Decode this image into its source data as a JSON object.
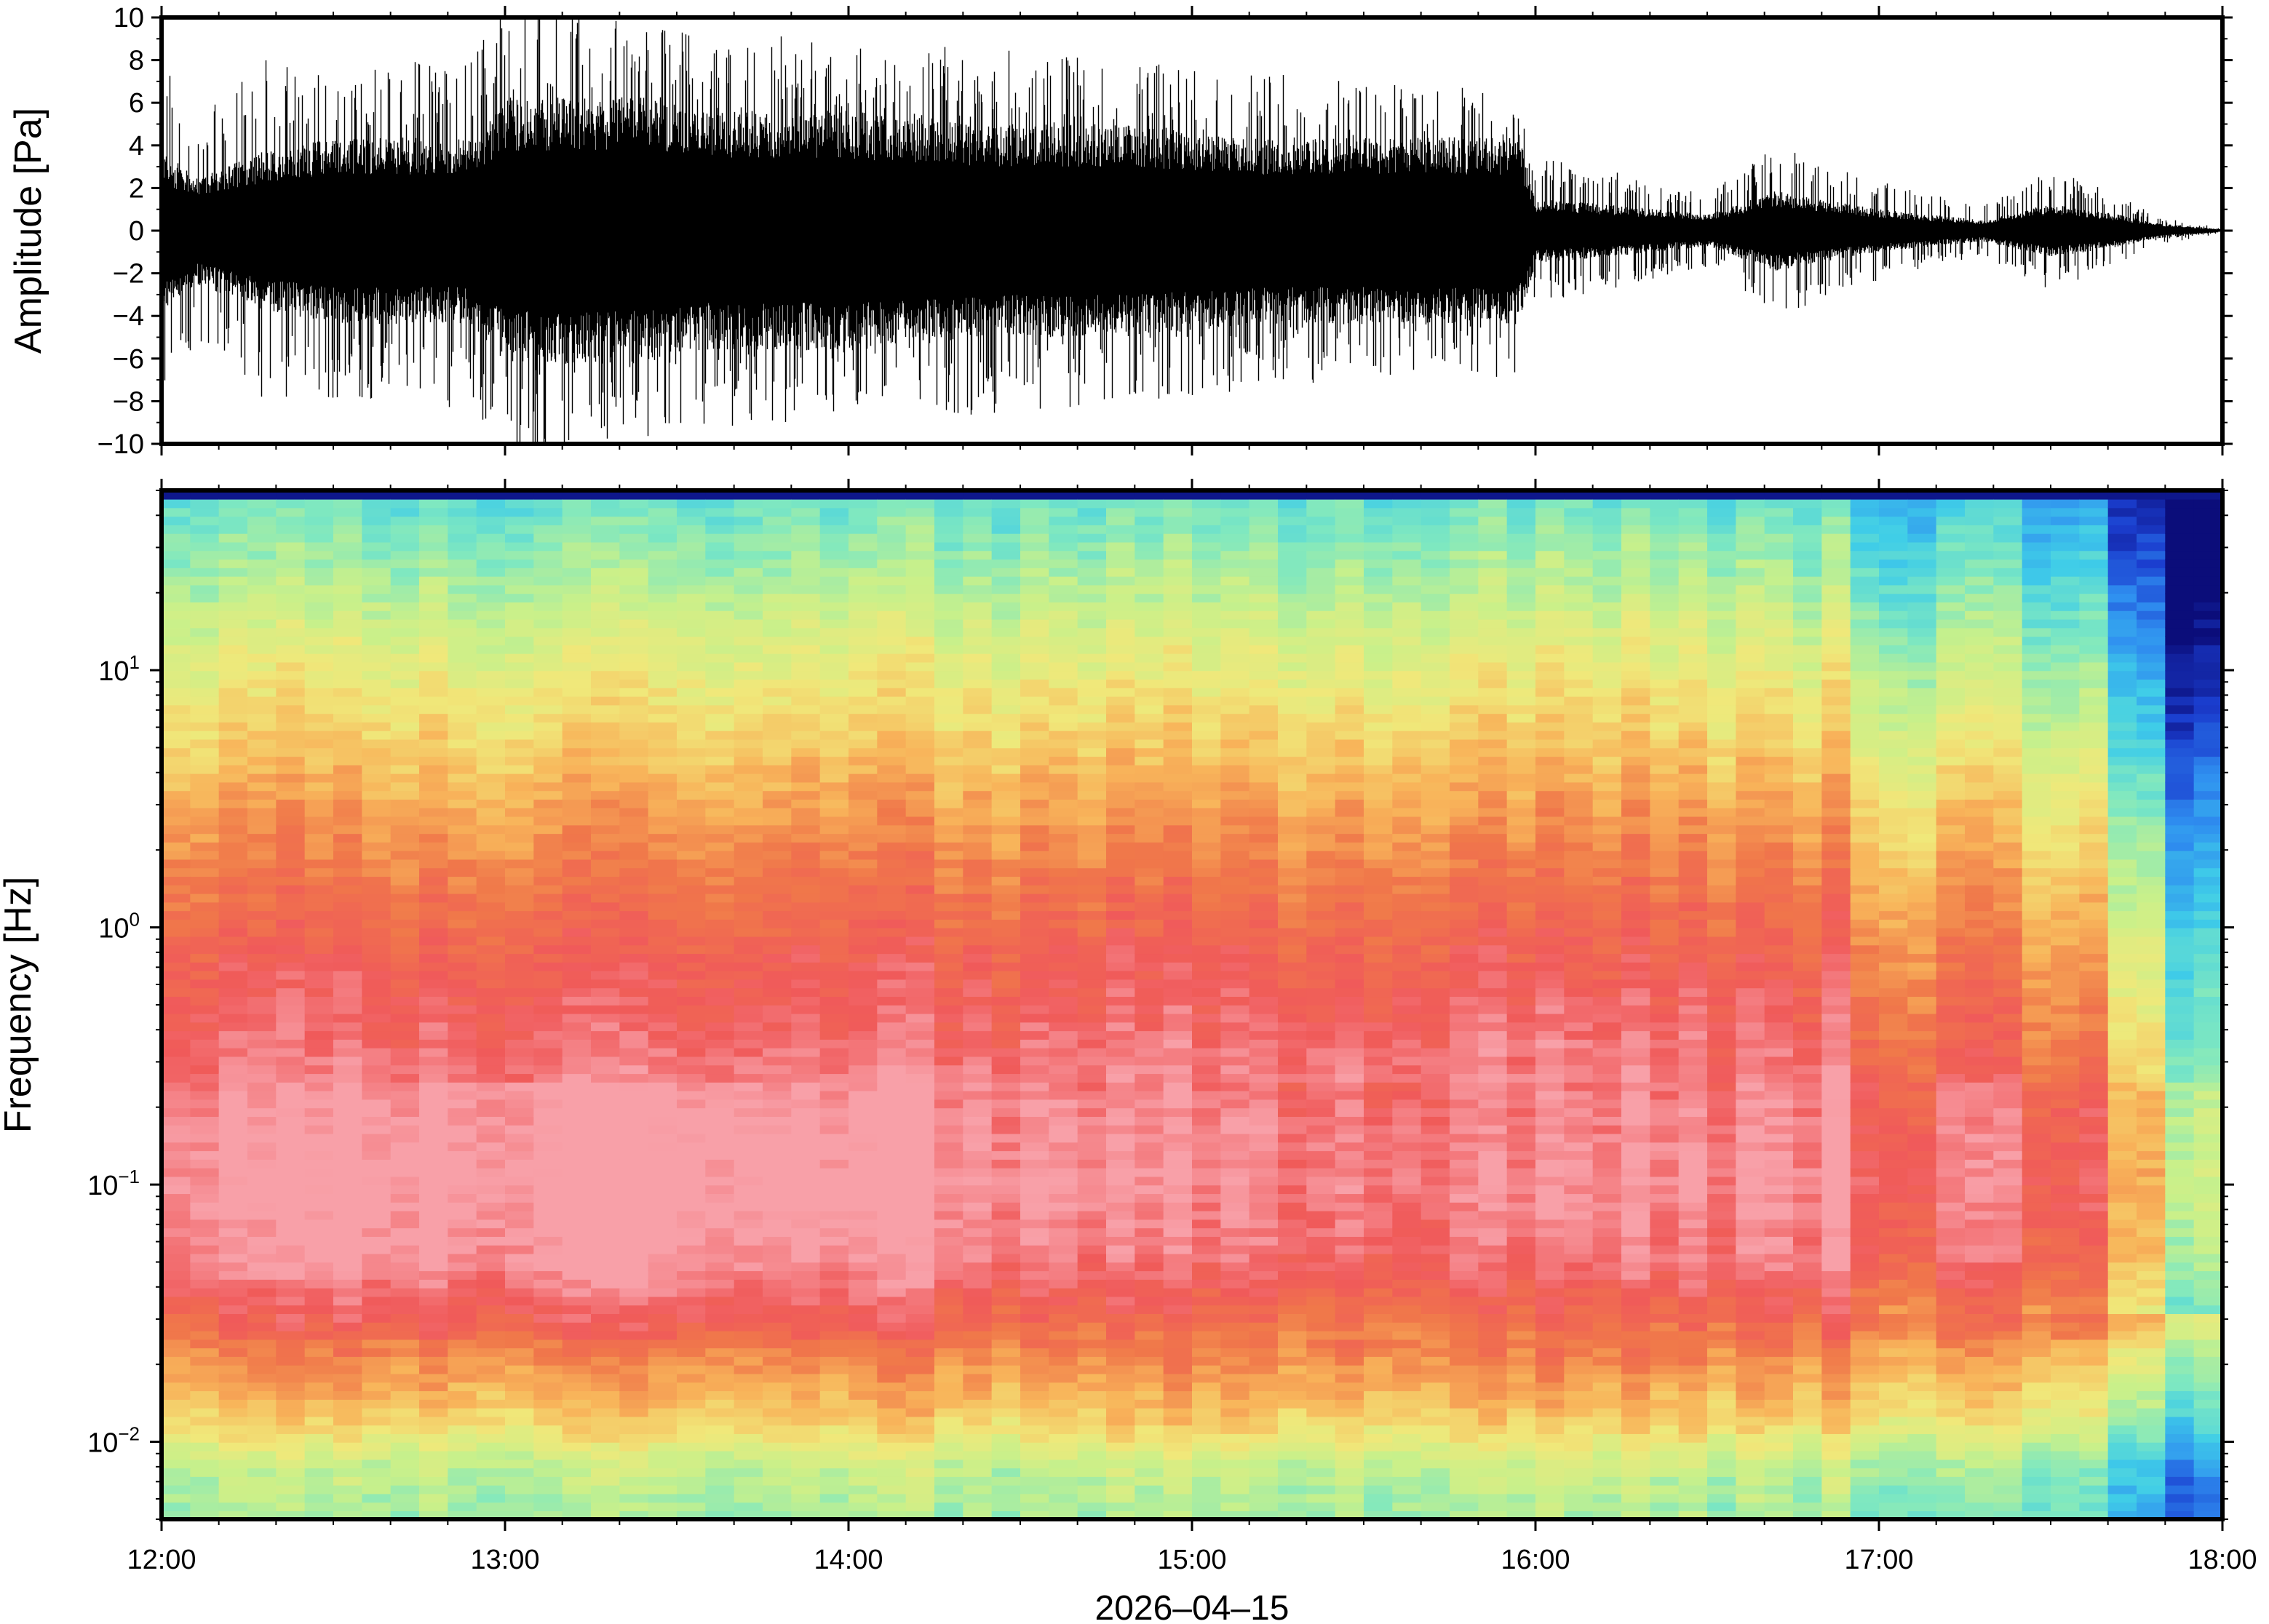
{
  "chart_data": [
    {
      "type": "line",
      "panel": "waveform",
      "ylabel": "Amplitude [Pa]",
      "xlabel": "",
      "ylim": [
        -10,
        10
      ],
      "yticks": [
        10,
        8,
        6,
        4,
        2,
        0,
        -2,
        -4,
        -6,
        -8,
        -10
      ],
      "ytick_labels": [
        "10",
        "8",
        "6",
        "4",
        "2",
        "0",
        "−2",
        "−4",
        "−6",
        "−8",
        "−10"
      ],
      "line_color": "#000000",
      "envelope": {
        "description_hours": "approximate amplitude envelope vs time in hours since 12:00",
        "x": [
          0.0,
          0.1,
          0.3,
          0.5,
          0.7,
          0.9,
          1.0,
          1.2,
          1.4,
          1.6,
          1.8,
          2.0,
          2.4,
          2.8,
          3.2,
          3.6,
          3.95,
          4.0,
          4.2,
          4.5,
          4.7,
          5.0,
          5.3,
          5.5,
          5.7,
          5.8,
          6.0
        ],
        "peak": [
          8.0,
          4.5,
          7.0,
          7.0,
          7.0,
          7.5,
          9.5,
          9.0,
          8.5,
          8.0,
          8.0,
          7.5,
          7.5,
          7.0,
          6.5,
          6.0,
          6.0,
          3.0,
          2.5,
          1.5,
          3.5,
          2.0,
          1.0,
          2.5,
          1.5,
          0.6,
          0.1
        ],
        "typical": [
          3.0,
          2.0,
          3.0,
          3.5,
          3.5,
          3.5,
          5.0,
          5.0,
          5.0,
          4.5,
          4.5,
          4.5,
          4.0,
          4.0,
          3.5,
          3.5,
          3.5,
          1.2,
          1.0,
          0.6,
          1.5,
          0.8,
          0.4,
          1.0,
          0.6,
          0.3,
          0.05
        ]
      }
    },
    {
      "type": "heatmap",
      "panel": "spectrogram",
      "ylabel": "Frequency [Hz]",
      "xlabel": "2026–04–15",
      "yscale": "log",
      "ylim": [
        0.005,
        50
      ],
      "yticks": [
        10,
        1,
        0.1,
        0.01
      ],
      "ytick_labels": [
        {
          "base": "10",
          "exp": "1"
        },
        {
          "base": "10",
          "exp": "0"
        },
        {
          "base": "10",
          "exp": "−1"
        },
        {
          "base": "10",
          "exp": "−2"
        }
      ],
      "xticks": [
        "12:00",
        "13:00",
        "14:00",
        "15:00",
        "16:00",
        "17:00",
        "18:00"
      ],
      "xlim": [
        "12:00",
        "18:00"
      ],
      "colormap": [
        "#0b0d7a",
        "#1b3fd0",
        "#2f8ff0",
        "#3fcde8",
        "#7fe8c0",
        "#c9f08a",
        "#f0e87a",
        "#f8b45a",
        "#f0784a",
        "#f05a5a",
        "#f8a0a8"
      ],
      "colormap_note": "low power = dark blue, high power = pink",
      "power_profile_by_log_freq": {
        "log10_freq": [
          -2.3,
          -2.1,
          -1.9,
          -1.7,
          -1.5,
          -1.3,
          -1.0,
          -0.7,
          -0.4,
          -0.1,
          0.2,
          0.5,
          0.8,
          1.1,
          1.4,
          1.65,
          1.7
        ],
        "level": [
          0.45,
          0.5,
          0.66,
          0.76,
          0.87,
          0.96,
          1.0,
          0.98,
          0.92,
          0.87,
          0.8,
          0.72,
          0.63,
          0.55,
          0.45,
          0.38,
          0.0
        ]
      },
      "time_segments_hours": [
        {
          "t0": 0.0,
          "t1": 4.95,
          "offset": 0.0
        },
        {
          "t0": 4.95,
          "t1": 5.2,
          "offset": -0.12
        },
        {
          "t0": 5.2,
          "t1": 5.4,
          "offset": -0.05
        },
        {
          "t0": 5.4,
          "t1": 5.55,
          "offset": -0.14
        },
        {
          "t0": 5.55,
          "t1": 5.7,
          "offset": -0.09
        },
        {
          "t0": 5.7,
          "t1": 5.8,
          "offset": -0.3
        },
        {
          "t0": 5.8,
          "t1": 6.0,
          "offset": -0.55
        }
      ]
    }
  ]
}
